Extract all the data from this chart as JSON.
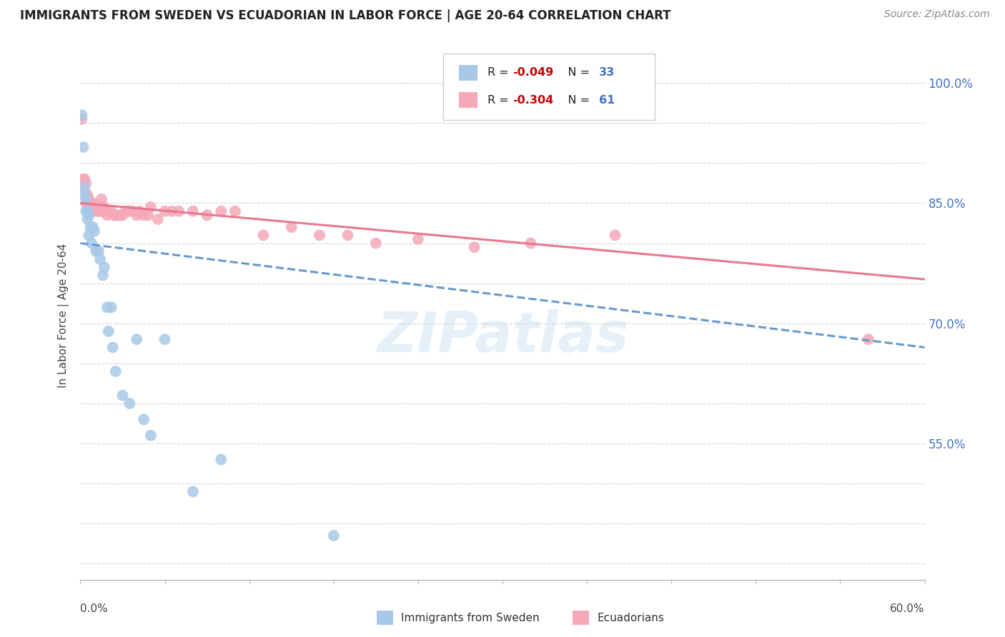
{
  "title": "IMMIGRANTS FROM SWEDEN VS ECUADORIAN IN LABOR FORCE | AGE 20-64 CORRELATION CHART",
  "source": "Source: ZipAtlas.com",
  "ylabel": "In Labor Force | Age 20-64",
  "right_yticks": [
    55.0,
    70.0,
    85.0,
    100.0
  ],
  "xlim": [
    0.0,
    0.6
  ],
  "ylim": [
    0.38,
    1.04
  ],
  "watermark": "ZIPatlas",
  "sweden_R": -0.049,
  "sweden_N": 33,
  "ecuador_R": -0.304,
  "ecuador_N": 61,
  "sweden_color": "#a8c8e8",
  "ecuador_color": "#f4a8b8",
  "trend_line_blue": "#6699cc",
  "trend_line_pink": "#e87890",
  "sweden_x": [
    0.001,
    0.002,
    0.003,
    0.003,
    0.004,
    0.004,
    0.005,
    0.005,
    0.006,
    0.006,
    0.007,
    0.008,
    0.009,
    0.01,
    0.011,
    0.013,
    0.014,
    0.016,
    0.017,
    0.019,
    0.02,
    0.022,
    0.023,
    0.025,
    0.03,
    0.035,
    0.04,
    0.045,
    0.05,
    0.06,
    0.08,
    0.1,
    0.18
  ],
  "sweden_y": [
    0.96,
    0.92,
    0.87,
    0.86,
    0.855,
    0.84,
    0.84,
    0.83,
    0.835,
    0.81,
    0.82,
    0.8,
    0.82,
    0.815,
    0.79,
    0.79,
    0.78,
    0.76,
    0.77,
    0.72,
    0.69,
    0.72,
    0.67,
    0.64,
    0.61,
    0.6,
    0.68,
    0.58,
    0.56,
    0.68,
    0.49,
    0.53,
    0.435
  ],
  "ecuador_x": [
    0.001,
    0.002,
    0.003,
    0.003,
    0.004,
    0.004,
    0.005,
    0.005,
    0.006,
    0.006,
    0.007,
    0.007,
    0.008,
    0.008,
    0.009,
    0.009,
    0.01,
    0.011,
    0.012,
    0.013,
    0.014,
    0.015,
    0.016,
    0.016,
    0.017,
    0.018,
    0.019,
    0.02,
    0.022,
    0.024,
    0.025,
    0.026,
    0.028,
    0.03,
    0.032,
    0.034,
    0.035,
    0.037,
    0.04,
    0.042,
    0.045,
    0.048,
    0.05,
    0.055,
    0.06,
    0.065,
    0.07,
    0.08,
    0.09,
    0.1,
    0.11,
    0.13,
    0.15,
    0.17,
    0.19,
    0.21,
    0.24,
    0.28,
    0.32,
    0.38,
    0.56
  ],
  "ecuador_y": [
    0.955,
    0.88,
    0.88,
    0.865,
    0.875,
    0.85,
    0.85,
    0.86,
    0.855,
    0.845,
    0.85,
    0.845,
    0.85,
    0.85,
    0.85,
    0.84,
    0.845,
    0.84,
    0.845,
    0.84,
    0.84,
    0.855,
    0.84,
    0.845,
    0.845,
    0.84,
    0.835,
    0.84,
    0.84,
    0.835,
    0.835,
    0.835,
    0.835,
    0.835,
    0.84,
    0.84,
    0.84,
    0.84,
    0.835,
    0.84,
    0.835,
    0.835,
    0.845,
    0.83,
    0.84,
    0.84,
    0.84,
    0.84,
    0.835,
    0.84,
    0.84,
    0.81,
    0.82,
    0.81,
    0.81,
    0.8,
    0.805,
    0.795,
    0.8,
    0.81,
    0.68
  ]
}
